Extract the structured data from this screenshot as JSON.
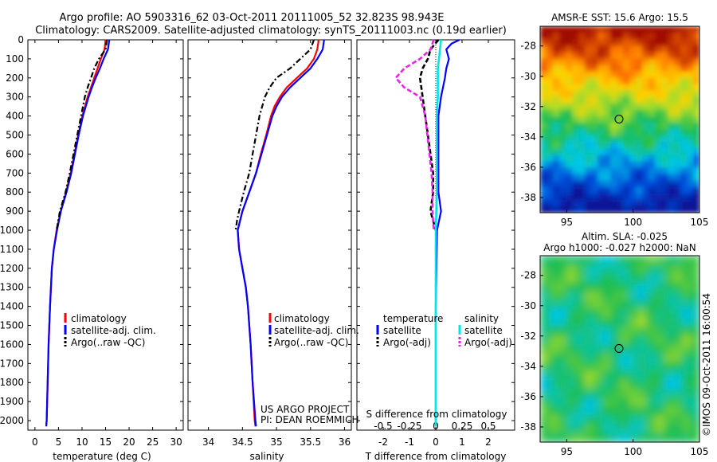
{
  "header": {
    "line1": "Argo profile: AO 5903316_62 03-Oct-2011 20111005_52 32.823S 98.943E",
    "line2": "Climatology: CARS2009. Satellite-adjusted climatology: synTS_20111003.nc (0.19d earlier)"
  },
  "project": {
    "line1": "US ARGO PROJECT",
    "line2": "PI: DEAN ROEMMICH"
  },
  "stamp": "©IMOS 09-Oct-2011 16:00:54",
  "colors": {
    "climatology": "#ff0000",
    "satellite": "#0000ff",
    "argo": "#000000",
    "satellite_salinity": "#00e5e5",
    "argo_salinity": "#ee22ee"
  },
  "chart_data": [
    {
      "type": "line",
      "xlabel": "temperature (deg C)",
      "xlim": [
        -1.5,
        31.5
      ],
      "xticks": [
        0,
        5,
        10,
        15,
        20,
        25,
        30
      ],
      "ylim": [
        2050,
        0
      ],
      "yticks": [
        0,
        100,
        200,
        300,
        400,
        500,
        600,
        700,
        800,
        900,
        1000,
        1100,
        1200,
        1300,
        1400,
        1500,
        1600,
        1700,
        1800,
        1900,
        2000
      ],
      "legend": [
        "climatology",
        "satellite-adj. clim.",
        "Argo(..raw -QC)"
      ],
      "series": [
        {
          "name": "climatology",
          "depth": [
            0,
            50,
            100,
            150,
            200,
            250,
            300,
            400,
            500,
            600,
            700,
            800,
            900,
            1000,
            1100,
            1200,
            1400,
            1600,
            1800,
            2000,
            2030
          ],
          "values": [
            15.0,
            14.8,
            14.0,
            13.3,
            12.6,
            11.9,
            11.2,
            10.1,
            9.2,
            8.4,
            7.6,
            6.6,
            5.5,
            4.6,
            4.0,
            3.6,
            3.2,
            2.9,
            2.7,
            2.5,
            2.4
          ]
        },
        {
          "name": "satellite-adj. clim.",
          "depth": [
            0,
            50,
            100,
            150,
            200,
            250,
            300,
            400,
            500,
            600,
            700,
            800,
            900,
            1000,
            1100,
            1200,
            1400,
            1600,
            1800,
            2000,
            2030
          ],
          "values": [
            15.8,
            15.5,
            14.6,
            13.8,
            12.9,
            12.1,
            11.4,
            10.2,
            9.3,
            8.5,
            7.7,
            6.7,
            5.5,
            4.7,
            4.0,
            3.6,
            3.2,
            2.9,
            2.7,
            2.5,
            2.4
          ]
        },
        {
          "name": "Argo(..raw -QC)",
          "depth": [
            0,
            50,
            100,
            150,
            200,
            250,
            300,
            400,
            500,
            600,
            700,
            800,
            900,
            1000
          ],
          "values": [
            15.3,
            15.0,
            13.6,
            12.6,
            11.9,
            11.2,
            10.6,
            9.8,
            9.0,
            8.2,
            7.4,
            6.5,
            5.3,
            4.6
          ]
        }
      ]
    },
    {
      "type": "line",
      "xlabel": "salinity",
      "xlim": [
        33.7,
        36.1
      ],
      "xticks": [
        34,
        34.5,
        35,
        35.5,
        36
      ],
      "ylim": [
        2050,
        0
      ],
      "legend": [
        "climatology",
        "satellite-adj. clim.",
        "Argo(..raw -QC)"
      ],
      "series": [
        {
          "name": "climatology",
          "depth": [
            0,
            50,
            100,
            150,
            200,
            250,
            300,
            350,
            400,
            500,
            600,
            700,
            800,
            900,
            1000,
            1100,
            1200,
            1300,
            1400,
            1600,
            1800,
            2000,
            2030
          ],
          "values": [
            35.62,
            35.6,
            35.55,
            35.45,
            35.3,
            35.15,
            35.05,
            34.97,
            34.92,
            34.85,
            34.77,
            34.7,
            34.6,
            34.5,
            34.43,
            34.45,
            34.5,
            34.55,
            34.58,
            34.62,
            34.65,
            34.68,
            34.69
          ]
        },
        {
          "name": "satellite-adj. clim.",
          "depth": [
            0,
            50,
            100,
            150,
            200,
            250,
            300,
            350,
            400,
            500,
            600,
            700,
            800,
            900,
            1000,
            1100,
            1200,
            1300,
            1400,
            1600,
            1800,
            2000,
            2030
          ],
          "values": [
            35.7,
            35.68,
            35.6,
            35.5,
            35.35,
            35.2,
            35.08,
            35.0,
            34.94,
            34.86,
            34.78,
            34.7,
            34.6,
            34.5,
            34.43,
            34.45,
            34.5,
            34.55,
            34.58,
            34.62,
            34.65,
            34.69,
            34.7
          ]
        },
        {
          "name": "Argo(..raw -QC)",
          "depth": [
            0,
            50,
            100,
            150,
            200,
            250,
            300,
            400,
            500,
            600,
            700,
            800,
            900,
            950,
            1000
          ],
          "values": [
            35.55,
            35.5,
            35.35,
            35.2,
            35.0,
            34.9,
            34.83,
            34.75,
            34.7,
            34.65,
            34.6,
            34.52,
            34.45,
            34.42,
            34.4
          ]
        }
      ]
    },
    {
      "type": "line",
      "xlabel": "T difference from climatology",
      "xlabel2": "S difference from climatology",
      "xlim": [
        -3,
        3
      ],
      "xticks": [
        -2,
        -1,
        0,
        1,
        2
      ],
      "x2ticks": [
        -0.5,
        -0.25,
        0,
        0.25,
        0.5
      ],
      "x2labels": [
        "-0.5",
        "-0.25",
        "0",
        "0.25",
        "0.5"
      ],
      "ylim": [
        2050,
        0
      ],
      "legend_titles": [
        "temperature",
        "salinity"
      ],
      "legend": [
        "satellite",
        "Argo(-adj)",
        "satellite",
        "Argo(-adj)"
      ],
      "series": [
        {
          "name": "temperature satellite",
          "depth": [
            0,
            20,
            50,
            100,
            150,
            200,
            300,
            400,
            600,
            800,
            900,
            1000,
            1400,
            2000,
            2030
          ],
          "values": [
            0.9,
            0.6,
            0.4,
            0.5,
            0.4,
            0.35,
            0.2,
            0.1,
            0.1,
            0.1,
            0.2,
            0.05,
            0.0,
            0.0,
            0.0
          ]
        },
        {
          "name": "temperature Argo(-adj)",
          "depth": [
            0,
            50,
            100,
            150,
            200,
            300,
            400,
            500,
            600,
            700,
            800,
            900,
            950,
            1000
          ],
          "values": [
            0.1,
            -0.2,
            -0.3,
            -0.5,
            -0.6,
            -0.5,
            -0.4,
            -0.3,
            -0.2,
            -0.1,
            -0.1,
            -0.2,
            -0.1,
            0.0
          ]
        },
        {
          "name": "salinity satellite",
          "depth": [
            0,
            50,
            100,
            150,
            200,
            300,
            400,
            600,
            800,
            1000,
            1400,
            2000,
            2030
          ],
          "values": [
            0.05,
            0.04,
            0.03,
            0.02,
            0.02,
            0.02,
            0.01,
            0.01,
            0.01,
            0.0,
            0.0,
            0.0,
            0.0
          ]
        },
        {
          "name": "salinity Argo(-adj)",
          "depth": [
            0,
            50,
            100,
            150,
            200,
            250,
            300,
            400,
            500,
            600,
            700,
            800,
            900,
            1000
          ],
          "values": [
            -0.02,
            -0.05,
            -0.15,
            -0.3,
            -0.38,
            -0.3,
            -0.15,
            -0.1,
            -0.08,
            -0.06,
            -0.04,
            -0.03,
            -0.03,
            -0.02
          ]
        }
      ]
    },
    {
      "type": "heatmap",
      "title": "AMSR-E SST: 15.6 Argo: 15.5",
      "xlim": [
        93,
        105
      ],
      "ylim": [
        -39,
        -26.7
      ],
      "xticks": [
        95,
        100,
        105
      ],
      "yticks": [
        -28,
        -30,
        -32,
        -34,
        -36,
        -38
      ],
      "marker": {
        "lon": 98.943,
        "lat": -32.823
      }
    },
    {
      "type": "heatmap",
      "title": "Altim. SLA: -0.025",
      "subtitle": "Argo h1000: -0.027 h2000: NaN",
      "xlim": [
        93,
        105
      ],
      "ylim": [
        -39,
        -26.7
      ],
      "xticks": [
        95,
        100,
        105
      ],
      "yticks": [
        -28,
        -30,
        -32,
        -34,
        -36,
        -38
      ],
      "marker": {
        "lon": 98.943,
        "lat": -32.823
      }
    }
  ]
}
